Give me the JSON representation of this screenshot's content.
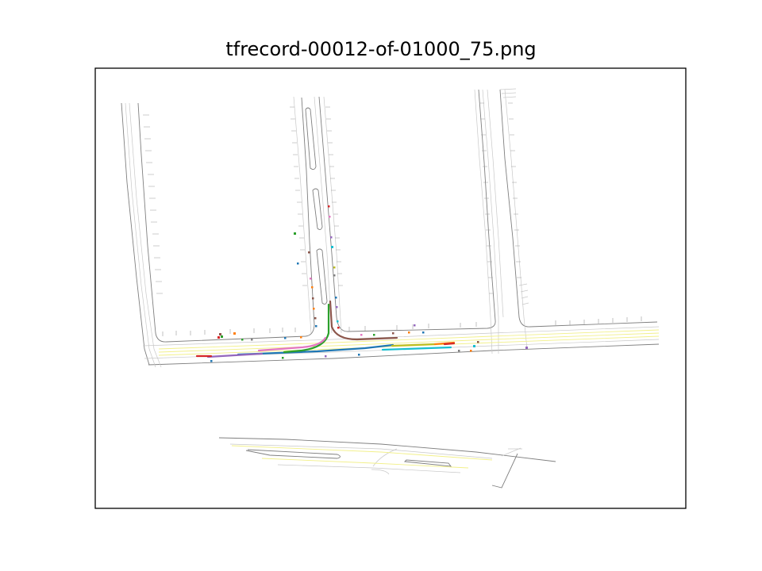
{
  "figure": {
    "title": "tfrecord-00012-of-01000_75.png"
  },
  "colors": {
    "road_edge": "#7f7f7f",
    "lane_line": "#c8c8c8",
    "yellow_line": "#f2f08a",
    "frame": "#000000"
  },
  "trajectory_colors": [
    "#1f77b4",
    "#ff7f0e",
    "#2ca02c",
    "#d62728",
    "#9467bd",
    "#8c564b",
    "#e377c2",
    "#7f7f7f",
    "#bcbd22",
    "#17becf"
  ]
}
